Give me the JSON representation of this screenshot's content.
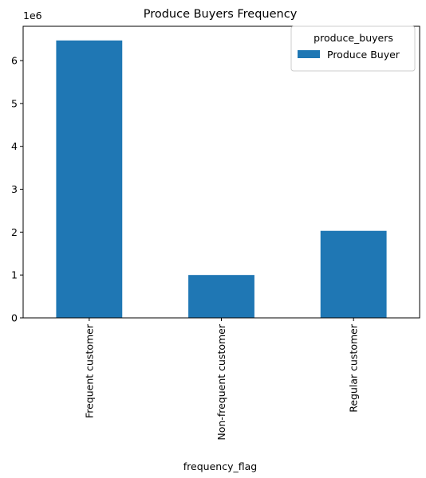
{
  "chart_data": {
    "type": "bar",
    "title": "Produce Buyers Frequency",
    "xlabel": "frequency_flag",
    "ylabel": "",
    "y_offset_text": "1e6",
    "categories": [
      "Frequent customer",
      "Non-frequent customer",
      "Regular customer"
    ],
    "series": [
      {
        "name": "Produce Buyer",
        "values": [
          6470000,
          1000000,
          2030000
        ],
        "color": "#1f77b4"
      }
    ],
    "ylim": [
      0,
      6800000
    ],
    "y_ticks": [
      0,
      1000000,
      2000000,
      3000000,
      4000000,
      5000000,
      6000000
    ],
    "y_tick_labels": [
      "0",
      "1",
      "2",
      "3",
      "4",
      "5",
      "6"
    ],
    "grid": false,
    "legend": {
      "title": "produce_buyers",
      "placement": "top-right"
    }
  }
}
